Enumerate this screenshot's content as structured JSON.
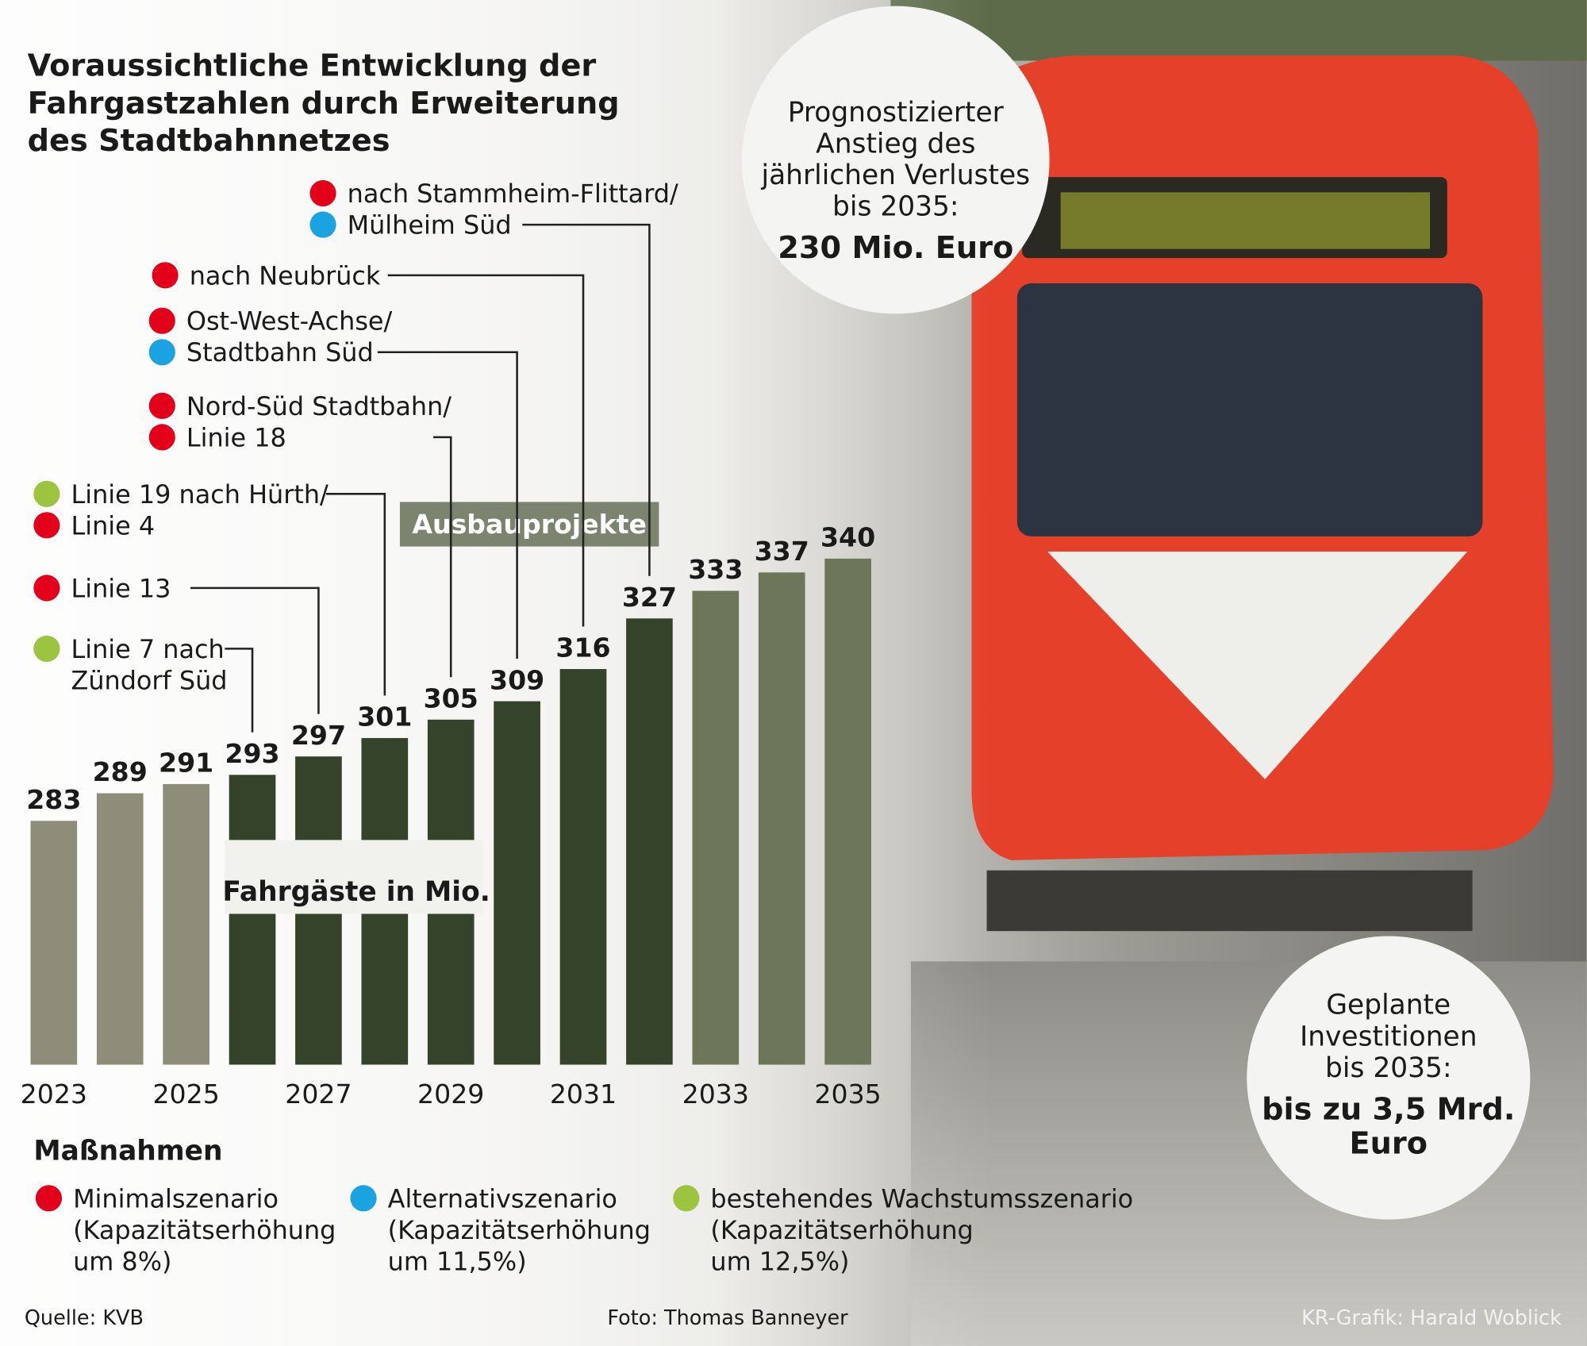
{
  "chart_data": {
    "type": "bar",
    "title": [
      "Voraussichtliche Entwicklung der",
      "Fahrgastzahlen durch Erweiterung",
      "des Stadtbahnnetzes"
    ],
    "categories": [
      "2023",
      null,
      "2025",
      null,
      "2027",
      null,
      "2029",
      null,
      "2031",
      null,
      "2033",
      null,
      "2035"
    ],
    "values": [
      283,
      289,
      291,
      293,
      297,
      301,
      305,
      309,
      316,
      327,
      333,
      337,
      340
    ],
    "colors": [
      "#8e8d7a",
      "#8e8d7a",
      "#8e8d7a",
      "#34432a",
      "#34432a",
      "#34432a",
      "#34432a",
      "#34432a",
      "#34432a",
      "#34432a",
      "#6d7659",
      "#6d7659",
      "#6d7659"
    ],
    "ylim": [
      230,
      340
    ],
    "axis_label": "Fahrgäste in Mio.",
    "annotation": "Ausbauprojekte",
    "projects": [
      {
        "lines": [
          {
            "text": "Linie 7 nach",
            "color": "#9cc43f"
          },
          {
            "text": "Zündorf Süd",
            "color": null
          }
        ]
      },
      {
        "lines": [
          {
            "text": "Linie 13",
            "color": "#e2001a"
          }
        ]
      },
      {
        "lines": [
          {
            "text": "Linie 19 nach Hürth/",
            "color": "#9cc43f"
          },
          {
            "text": "Linie 4",
            "color": "#e2001a"
          }
        ]
      },
      {
        "lines": [
          {
            "text": "Nord-Süd Stadtbahn/",
            "color": "#e2001a"
          },
          {
            "text": "Linie 18",
            "color": "#e2001a"
          }
        ]
      },
      {
        "lines": [
          {
            "text": "Ost-West-Achse/",
            "color": "#e2001a"
          },
          {
            "text": "Stadtbahn Süd",
            "color": "#1ba2e0"
          }
        ]
      },
      {
        "lines": [
          {
            "text": "nach Neubrück",
            "color": "#e2001a"
          }
        ]
      },
      {
        "lines": [
          {
            "text": "nach Stammheim-Flittard/",
            "color": "#e2001a"
          },
          {
            "text": "Mülheim Süd",
            "color": "#1ba2e0"
          }
        ]
      }
    ],
    "legend": {
      "title": "Maßnahmen",
      "items": [
        {
          "name": "Minimalszenario",
          "color": "#e2001a",
          "detail": [
            "(Kapazitätserhöhung",
            "um 8%)"
          ]
        },
        {
          "name": "Alternativszenario",
          "color": "#1ba2e0",
          "detail": [
            "(Kapazitätserhöhung",
            "um 11,5%)"
          ]
        },
        {
          "name": "bestehendes Wachstumsszenario",
          "color": "#9cc43f",
          "detail": [
            "(Kapazitätserhöhung",
            "um 12,5%)"
          ]
        }
      ]
    },
    "info_boxes": [
      {
        "lines": [
          "Prognostizierter",
          "Anstieg des",
          "jährlichen Verlustes",
          "bis 2035:"
        ],
        "highlight": [
          "230 Mio. Euro"
        ]
      },
      {
        "lines": [
          "Geplante",
          "Investitionen",
          "bis 2035:"
        ],
        "highlight": [
          "bis zu 3,5 Mrd.",
          "Euro"
        ]
      }
    ],
    "footer": {
      "source": "Quelle: KVB",
      "photo": "Foto: Thomas Banneyer",
      "credit": "KR-Grafik: Harald Woblick"
    }
  }
}
